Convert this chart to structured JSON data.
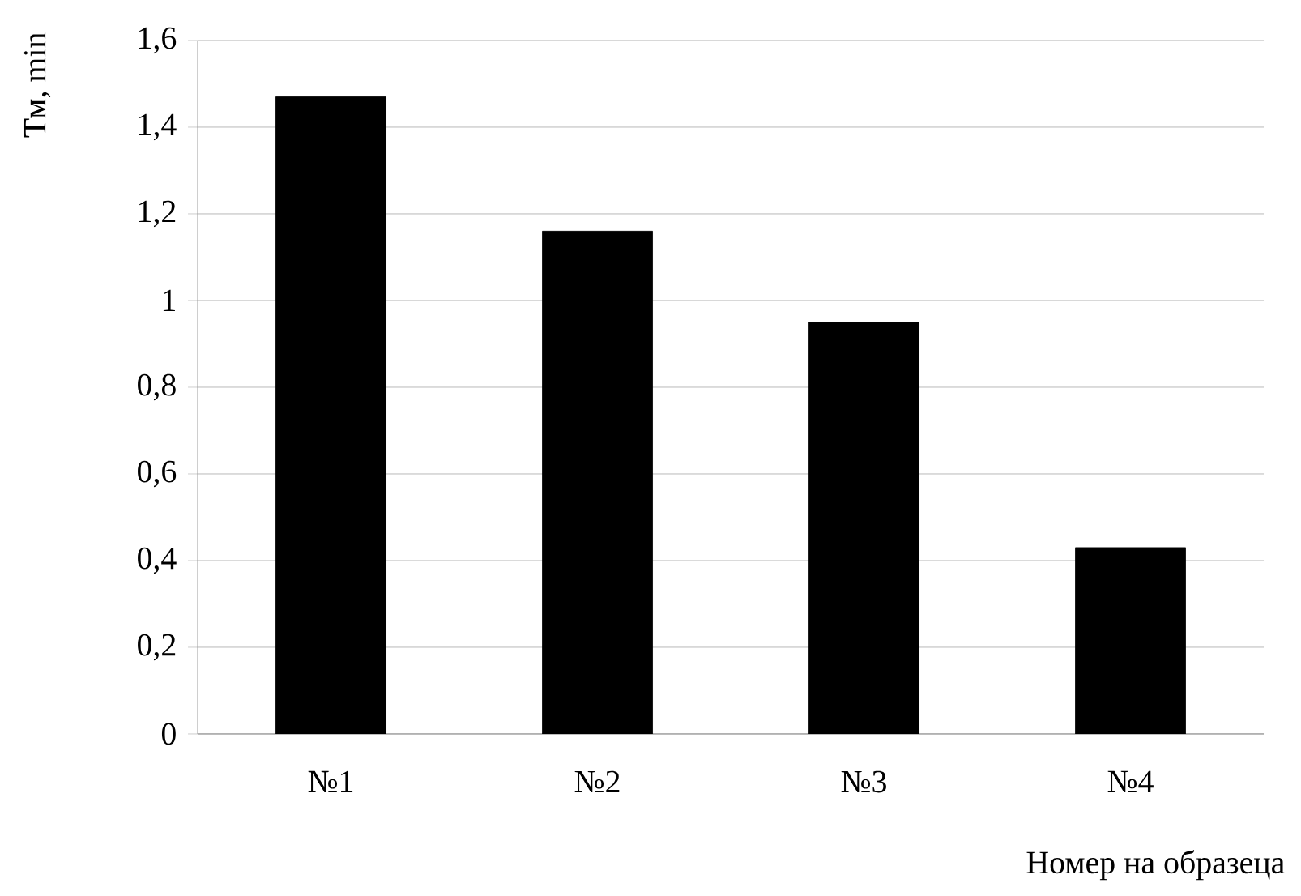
{
  "chart_data": {
    "type": "bar",
    "xlabel": "Номер на образеца",
    "ylabel": "Тм, min",
    "categories": [
      "№1",
      "№2",
      "№3",
      "№4"
    ],
    "values": [
      1.47,
      1.16,
      0.95,
      0.43
    ],
    "color": "#000000",
    "ylim": [
      0,
      1.6
    ],
    "yticks": [
      0,
      {
        "value": 0.2,
        "label": "0,2"
      },
      {
        "value": 0.4,
        "label": "0,4"
      },
      {
        "value": 0.6,
        "label": "0,6"
      },
      {
        "value": 0.8,
        "label": "0,8"
      },
      1,
      {
        "value": 1.2,
        "label": "1,2"
      },
      {
        "value": 1.4,
        "label": "1,4"
      },
      {
        "value": 1.6,
        "label": "1,6"
      }
    ],
    "grid": "y"
  }
}
